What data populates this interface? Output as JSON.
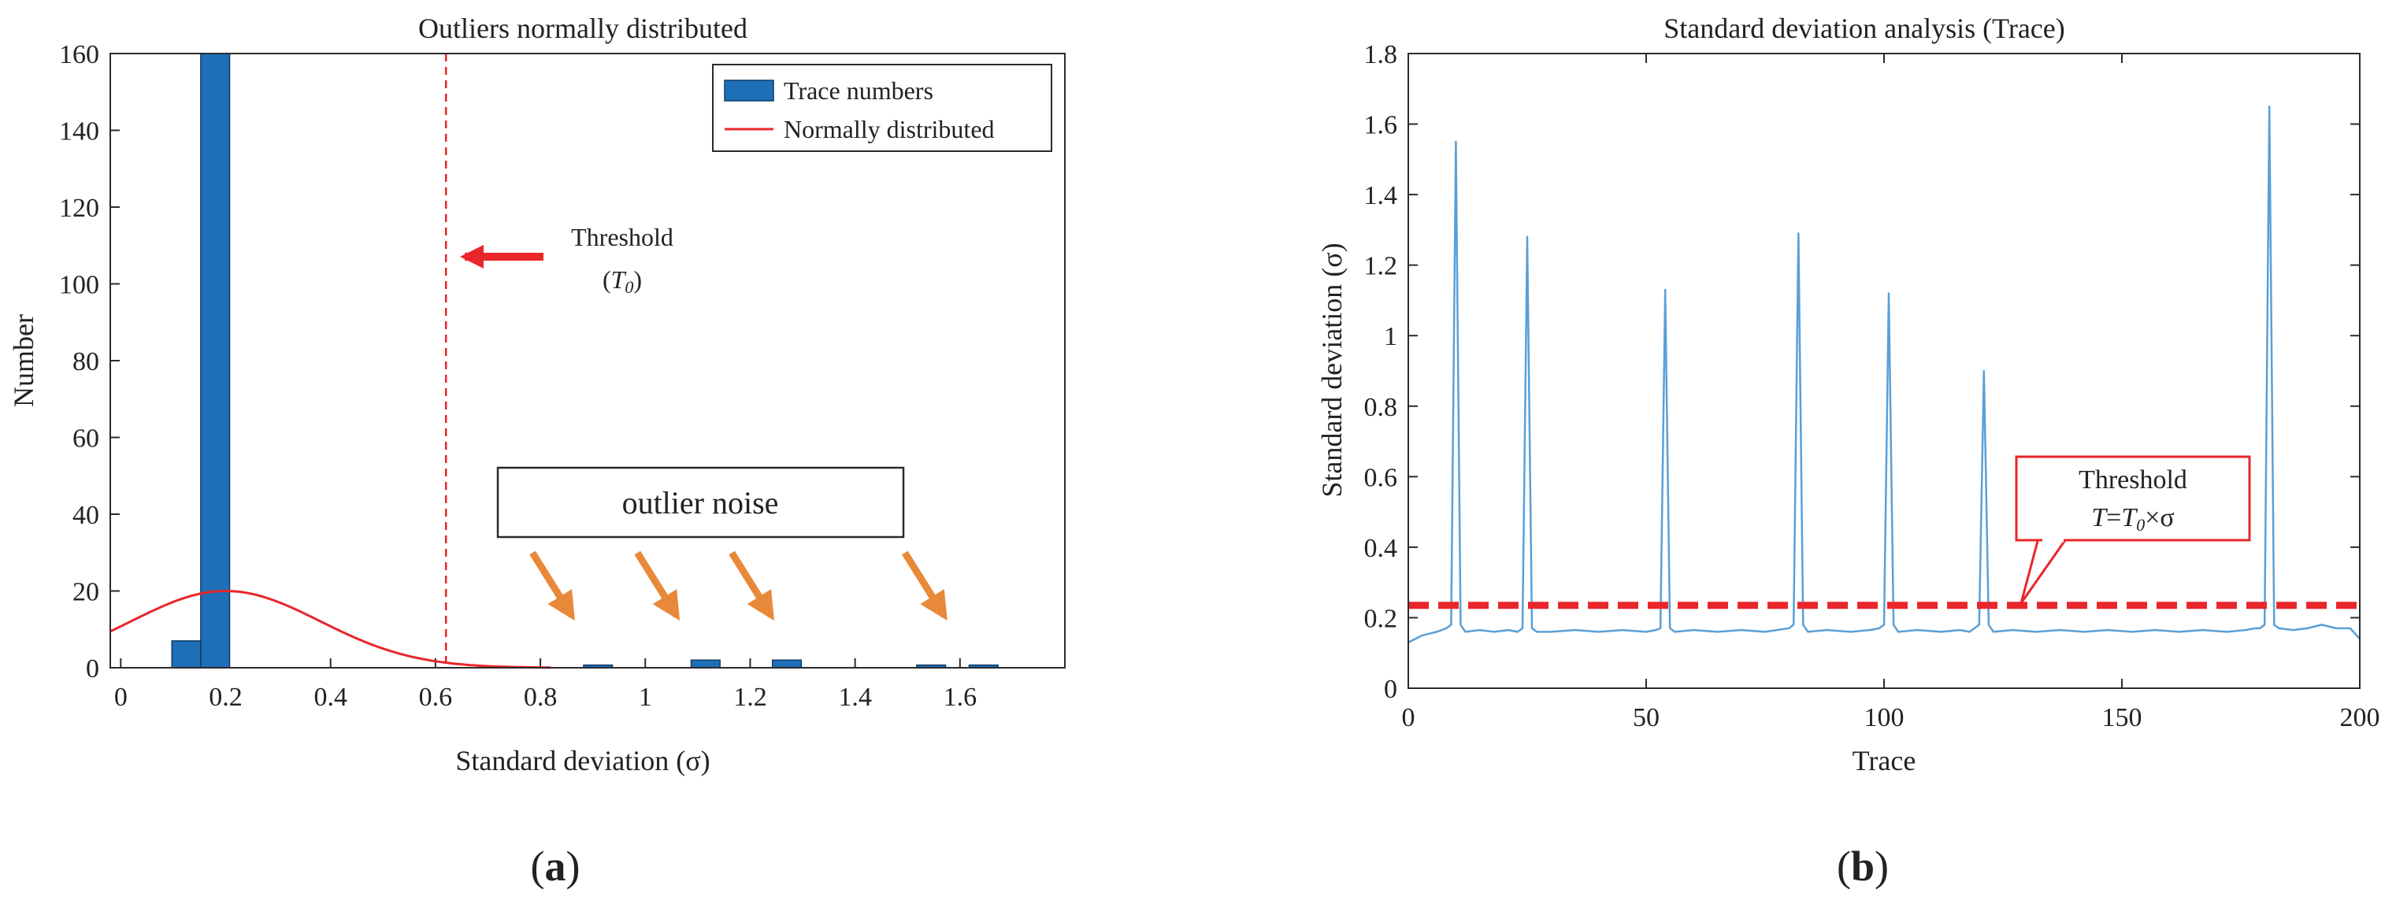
{
  "colors": {
    "bar": "#1f6fb8",
    "bar_edge": "#0f3d66",
    "normal_curve": "#e8262b",
    "threshold": "#e8262b",
    "trace_line": "#5a9fd6",
    "arrow_orange": "#e8893a",
    "axis": "#2b2b2b"
  },
  "panels": [
    {
      "label_open": "(",
      "label_letter": "a",
      "label_close": ")"
    },
    {
      "label_open": "(",
      "label_letter": "b",
      "label_close": ")"
    }
  ],
  "chart_data": [
    {
      "type": "bar",
      "title": "Outliers normally distributed",
      "xlabel": "Standard deviation (σ)",
      "ylabel": "Number",
      "xlim": [
        -0.02,
        1.8
      ],
      "ylim": [
        0,
        160
      ],
      "xticks": [
        0,
        0.2,
        0.4,
        0.6,
        0.8,
        1,
        1.2,
        1.4,
        1.6
      ],
      "xtick_labels": [
        "0",
        "0.2",
        "0.4",
        "0.6",
        "0.8",
        "1",
        "1.2",
        "1.4",
        "1.6"
      ],
      "yticks": [
        0,
        20,
        40,
        60,
        80,
        100,
        120,
        140,
        160
      ],
      "ytick_labels": [
        "0",
        "20",
        "40",
        "60",
        "80",
        "100",
        "120",
        "140",
        "160"
      ],
      "bin_width": 0.055,
      "bars": [
        {
          "x": 0.125,
          "value": 7
        },
        {
          "x": 0.18,
          "value": 160
        },
        {
          "x": 0.91,
          "value": 0.7
        },
        {
          "x": 1.115,
          "value": 2
        },
        {
          "x": 1.27,
          "value": 2
        },
        {
          "x": 1.545,
          "value": 0.7
        },
        {
          "x": 1.645,
          "value": 0.7
        }
      ],
      "normal_curve": {
        "mean": 0.2,
        "sd": 0.18,
        "peak": 20,
        "x_range": [
          -0.02,
          0.82
        ]
      },
      "threshold_x": 0.62,
      "legend": [
        "Trace numbers",
        "Normally distributed"
      ],
      "legend_position": "top-right",
      "annotations": {
        "threshold_label": "Threshold",
        "threshold_symbol_open": "(",
        "threshold_symbol": "T",
        "threshold_symbol_sub": "0",
        "threshold_symbol_close": ")",
        "outlier_box": "outlier noise",
        "outlier_arrow_targets": [
          0.86,
          1.06,
          1.24,
          1.57
        ]
      }
    },
    {
      "type": "line",
      "title": "Standard deviation analysis (Trace)",
      "xlabel": "Trace",
      "ylabel": "Standard deviation (σ)",
      "xlim": [
        0,
        200
      ],
      "ylim": [
        0,
        1.8
      ],
      "xticks": [
        0,
        50,
        100,
        150,
        200
      ],
      "xtick_labels": [
        "0",
        "50",
        "100",
        "150",
        "200"
      ],
      "yticks": [
        0,
        0.2,
        0.4,
        0.6,
        0.8,
        1,
        1.2,
        1.4,
        1.6,
        1.8
      ],
      "ytick_labels": [
        "0",
        "0.2",
        "0.4",
        "0.6",
        "0.8",
        "1",
        "1.2",
        "1.4",
        "1.6",
        "1.8"
      ],
      "baseline": 0.16,
      "series": [
        {
          "name": "Standard deviation",
          "x": [
            0,
            3,
            6,
            8,
            9,
            10,
            11,
            12,
            15,
            18,
            21,
            23,
            24,
            25,
            26,
            27,
            30,
            35,
            40,
            45,
            50,
            52,
            53,
            54,
            55,
            56,
            60,
            65,
            70,
            75,
            80,
            81,
            82,
            83,
            84,
            88,
            93,
            97,
            99,
            100,
            101,
            102,
            103,
            107,
            112,
            116,
            118,
            119,
            120,
            121,
            122,
            123,
            127,
            132,
            137,
            142,
            147,
            152,
            157,
            162,
            167,
            172,
            176,
            178,
            179,
            180,
            181,
            182,
            183,
            186,
            189,
            192,
            195,
            198,
            200
          ],
          "y": [
            0.13,
            0.15,
            0.16,
            0.17,
            0.18,
            1.55,
            0.18,
            0.16,
            0.165,
            0.16,
            0.165,
            0.16,
            0.17,
            1.28,
            0.17,
            0.16,
            0.16,
            0.165,
            0.16,
            0.165,
            0.16,
            0.165,
            0.17,
            1.13,
            0.17,
            0.16,
            0.165,
            0.16,
            0.165,
            0.16,
            0.17,
            0.18,
            1.29,
            0.18,
            0.16,
            0.165,
            0.16,
            0.165,
            0.17,
            0.18,
            1.12,
            0.18,
            0.16,
            0.165,
            0.16,
            0.165,
            0.16,
            0.17,
            0.18,
            0.9,
            0.18,
            0.16,
            0.165,
            0.16,
            0.165,
            0.16,
            0.165,
            0.16,
            0.165,
            0.16,
            0.165,
            0.16,
            0.165,
            0.17,
            0.17,
            0.18,
            1.65,
            0.18,
            0.17,
            0.165,
            0.17,
            0.18,
            0.17,
            0.17,
            0.14
          ]
        }
      ],
      "threshold_y": 0.235,
      "annotations": {
        "threshold_label": "Threshold",
        "formula_T": "T",
        "formula_eq": "=",
        "formula_T2": "T",
        "formula_sub": "0",
        "formula_times": "×σ"
      }
    }
  ]
}
